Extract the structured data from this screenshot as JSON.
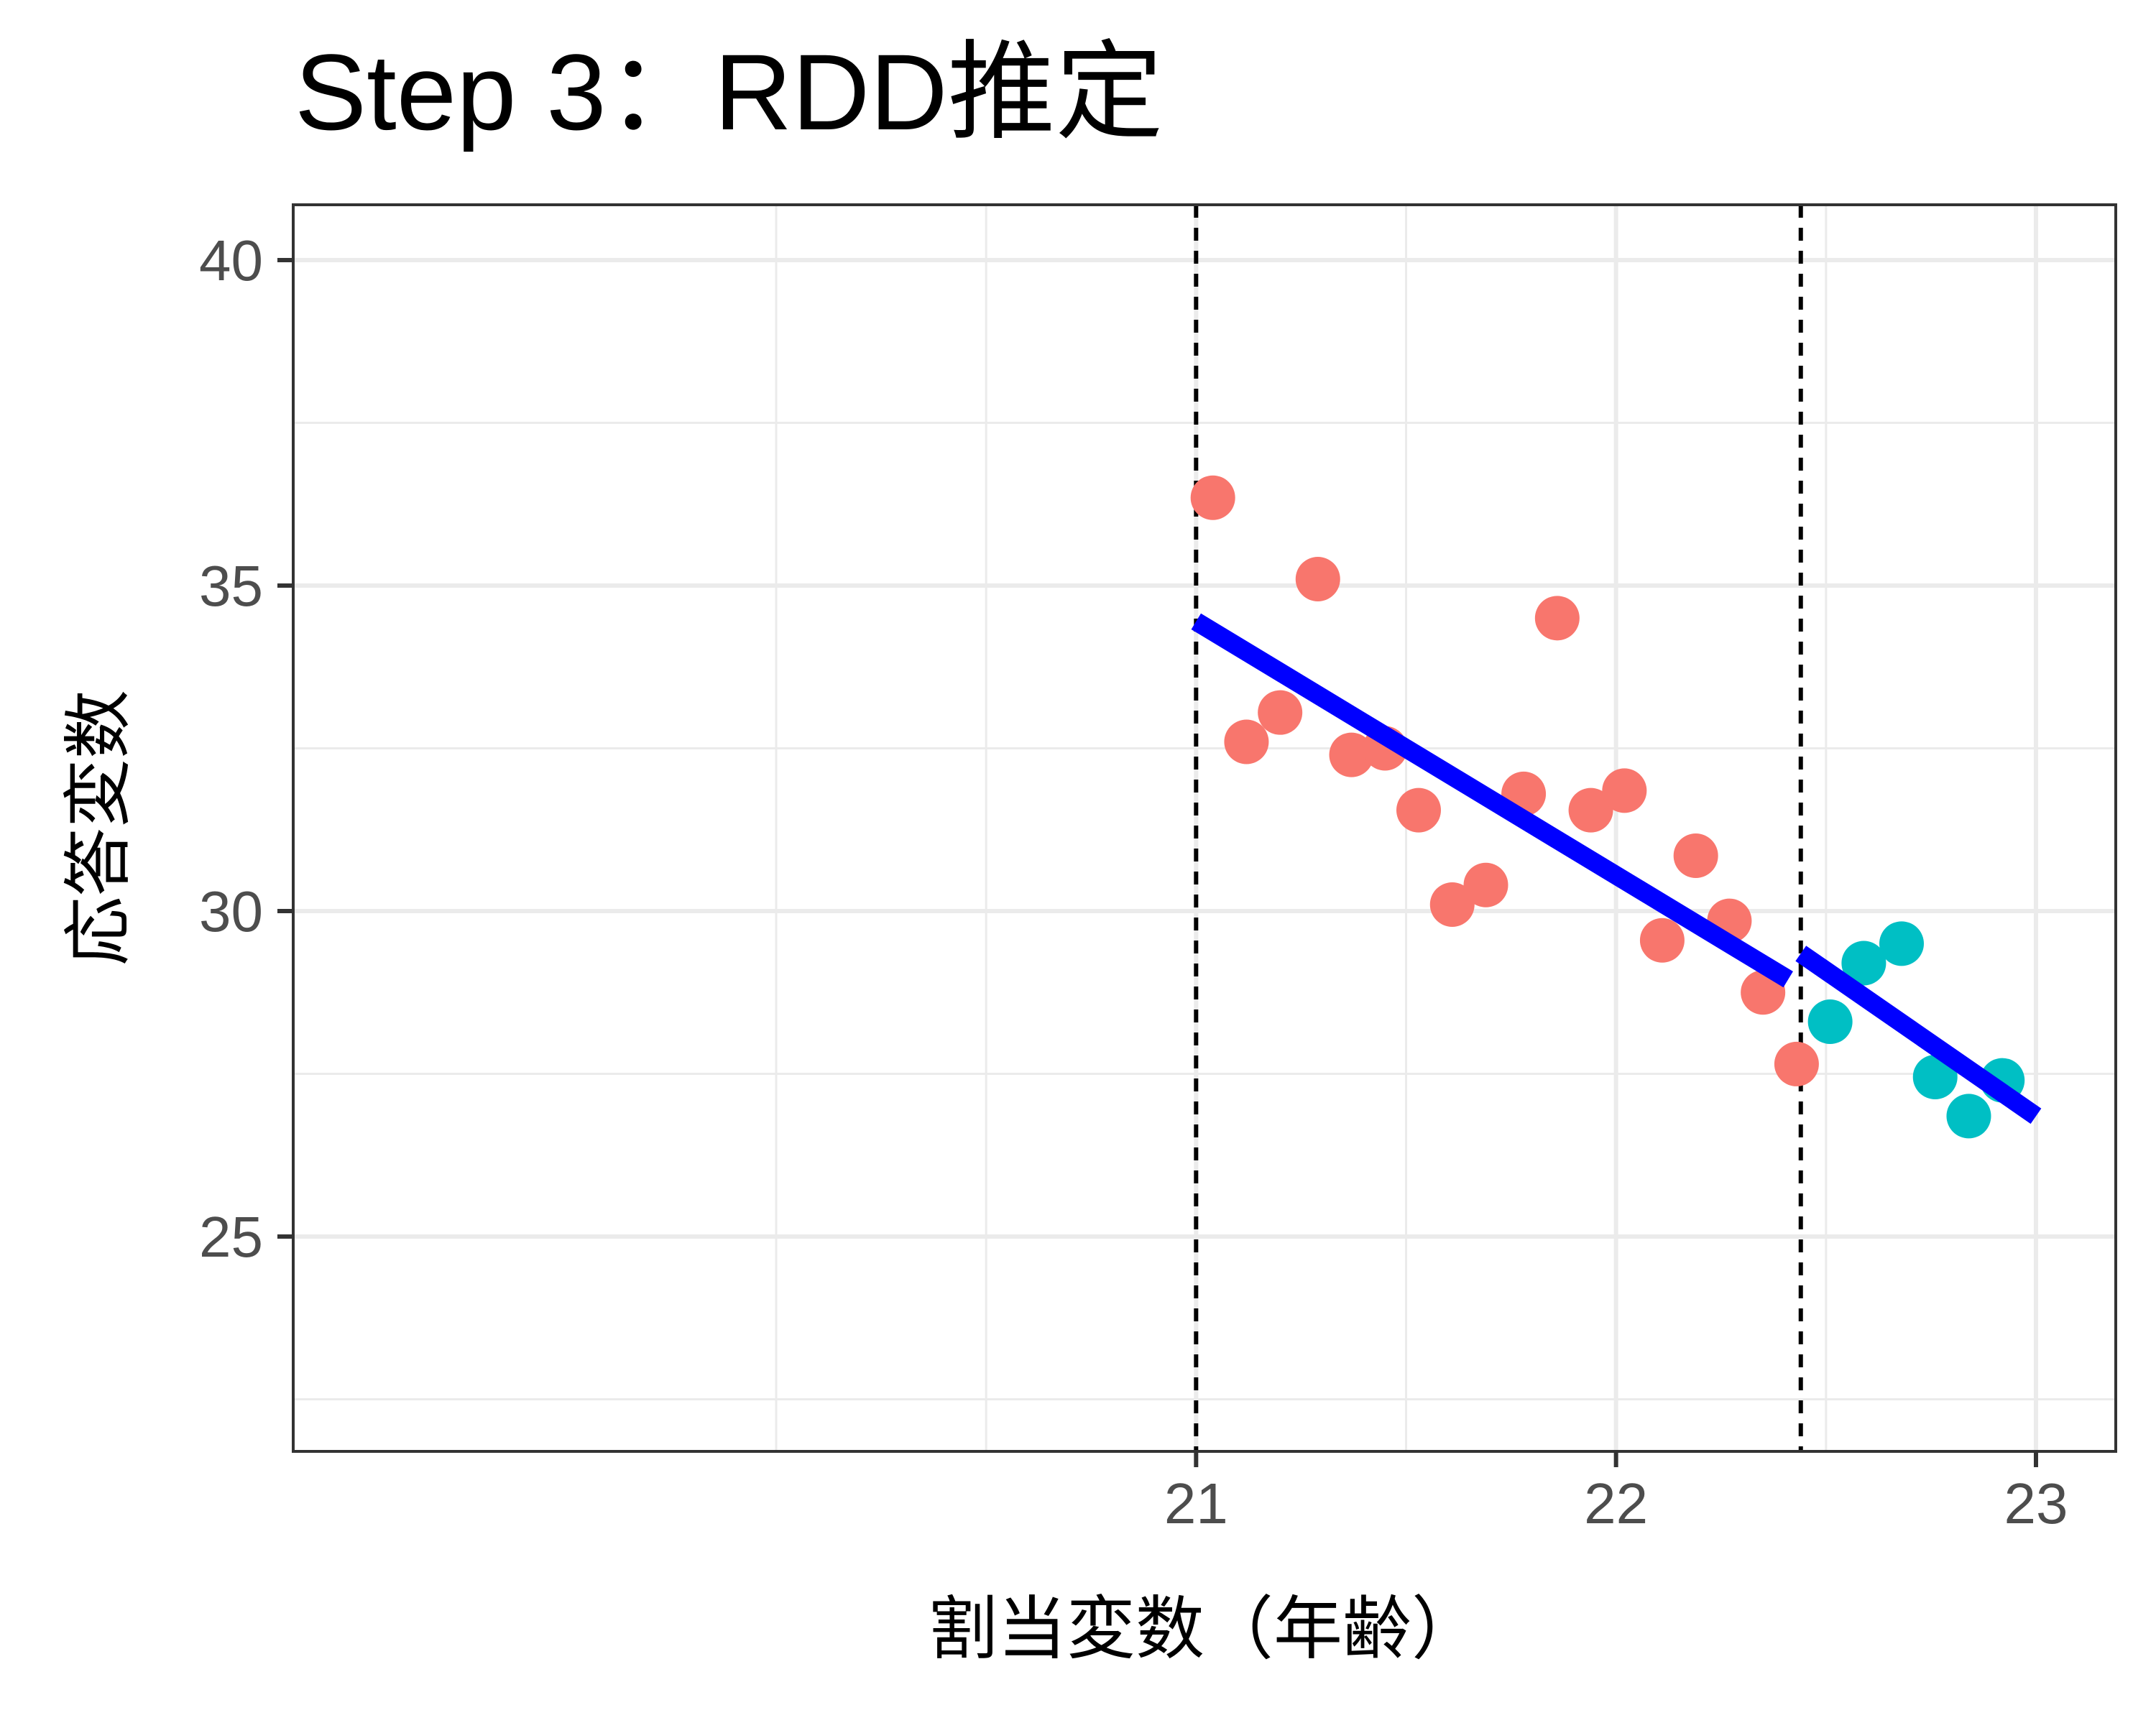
{
  "chart_data": {
    "type": "scatter",
    "title": "Step 3：RDD推定",
    "xlabel": "割当変数（年齢）",
    "ylabel": "応答変数",
    "xlim": [
      18.85,
      23.19
    ],
    "ylim": [
      21.7,
      40.85
    ],
    "x_ticks": [
      21,
      22,
      23
    ],
    "x_tick_labels": [
      "21",
      "22",
      "23"
    ],
    "x_minor_gridlines": [
      20,
      20.5,
      21.5,
      22.5
    ],
    "y_ticks": [
      25,
      30,
      35,
      40
    ],
    "y_tick_labels": [
      "25",
      "30",
      "35",
      "40"
    ],
    "y_minor_gridlines": [
      22.5,
      27.5,
      32.5,
      37.5
    ],
    "grid": true,
    "cutoff_lines": [
      21.0,
      22.44
    ],
    "series": [
      {
        "color": "#F8766D",
        "points": [
          [
            21.04,
            36.35
          ],
          [
            21.12,
            32.6
          ],
          [
            21.2,
            33.05
          ],
          [
            21.29,
            35.1
          ],
          [
            21.37,
            32.4
          ],
          [
            21.45,
            32.5
          ],
          [
            21.53,
            31.55
          ],
          [
            21.61,
            30.1
          ],
          [
            21.69,
            30.4
          ],
          [
            21.78,
            31.8
          ],
          [
            21.86,
            34.5
          ],
          [
            21.94,
            31.55
          ],
          [
            22.02,
            31.85
          ],
          [
            22.11,
            29.55
          ],
          [
            22.19,
            30.85
          ],
          [
            22.27,
            29.85
          ],
          [
            22.35,
            28.75
          ],
          [
            22.43,
            27.65
          ]
        ]
      },
      {
        "color": "#00BFC4",
        "points": [
          [
            22.51,
            28.3
          ],
          [
            22.59,
            29.2
          ],
          [
            22.68,
            29.5
          ],
          [
            22.76,
            27.45
          ],
          [
            22.84,
            26.85
          ],
          [
            22.92,
            27.4
          ]
        ]
      }
    ],
    "fit_lines": [
      {
        "color": "#0000FF",
        "x": [
          21.0,
          22.41
        ],
        "y": [
          34.45,
          28.95
        ]
      },
      {
        "color": "#0000FF",
        "x": [
          22.44,
          23.0
        ],
        "y": [
          29.35,
          26.85
        ]
      }
    ]
  }
}
